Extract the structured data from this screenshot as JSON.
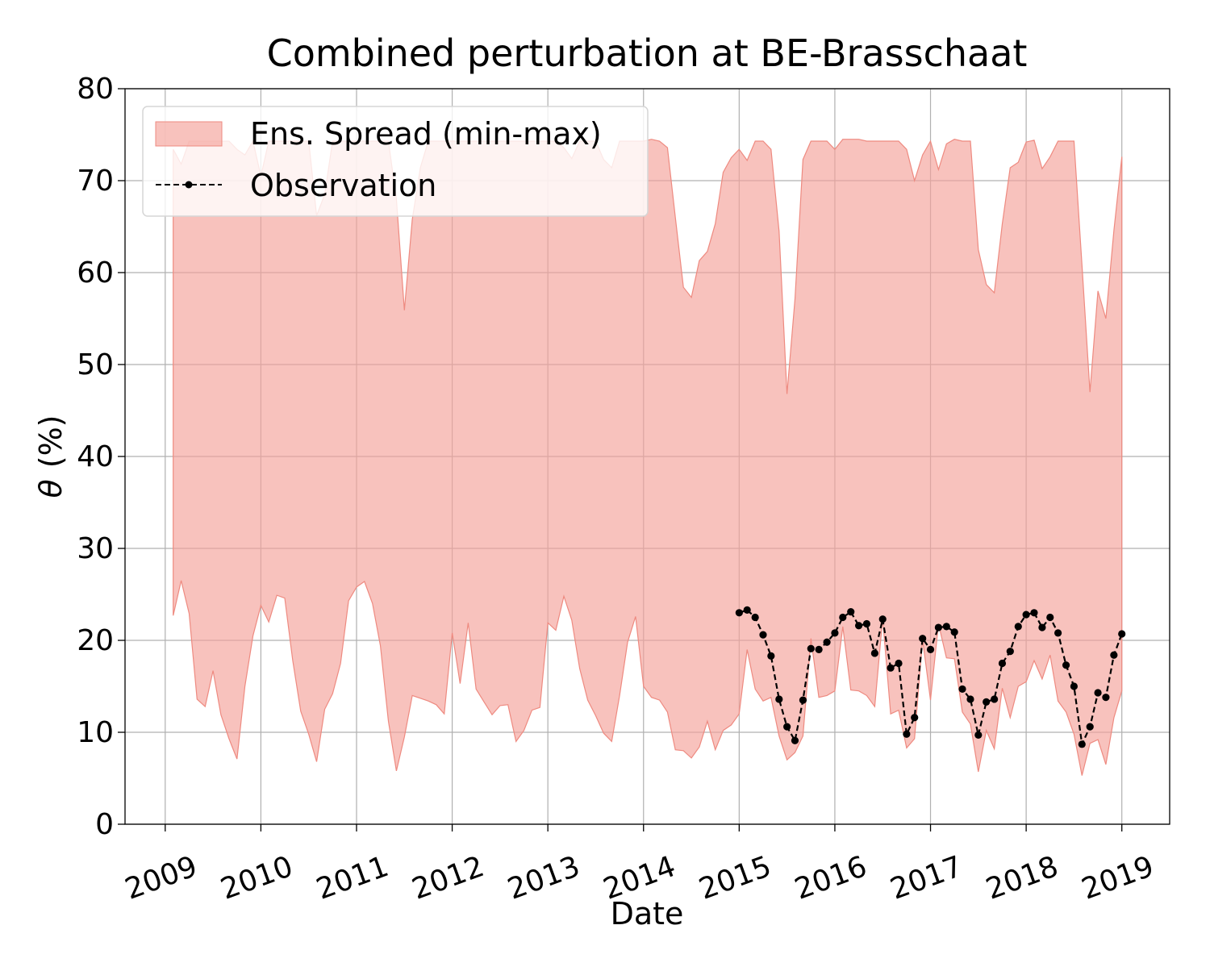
{
  "chart_data": {
    "type": "area",
    "title": "Combined perturbation at BE-Brasschaat",
    "xlabel": "Date",
    "ylabel_symbol": "θ",
    "ylabel_unit": "(%)",
    "ylim": [
      0,
      80
    ],
    "yticks": [
      0,
      10,
      20,
      30,
      40,
      50,
      60,
      70,
      80
    ],
    "xlim": [
      2008.58,
      2019.5
    ],
    "xticks": [
      2009,
      2010,
      2011,
      2012,
      2013,
      2014,
      2015,
      2016,
      2017,
      2018,
      2019
    ],
    "xtick_labels": [
      "2009",
      "2010",
      "2011",
      "2012",
      "2013",
      "2014",
      "2015",
      "2016",
      "2017",
      "2018",
      "2019"
    ],
    "grid": true,
    "legend_position": "upper-left",
    "colors": {
      "spread_fill": "#f4a29a",
      "spread_edge": "#ee8a80",
      "observation": "#000000",
      "grid": "#b0b0b0"
    },
    "series": [
      {
        "name": "Ens. Spread (min-max)",
        "kind": "band",
        "x": [
          2009.083,
          2009.167,
          2009.25,
          2009.333,
          2009.417,
          2009.5,
          2009.583,
          2009.667,
          2009.75,
          2009.833,
          2009.917,
          2010.0,
          2010.083,
          2010.167,
          2010.25,
          2010.333,
          2010.417,
          2010.5,
          2010.583,
          2010.667,
          2010.75,
          2010.833,
          2010.917,
          2011.0,
          2011.083,
          2011.167,
          2011.25,
          2011.333,
          2011.417,
          2011.5,
          2011.583,
          2011.667,
          2011.75,
          2011.833,
          2011.917,
          2012.0,
          2012.083,
          2012.167,
          2012.25,
          2012.333,
          2012.417,
          2012.5,
          2012.583,
          2012.667,
          2012.75,
          2012.833,
          2012.917,
          2013.0,
          2013.083,
          2013.167,
          2013.25,
          2013.333,
          2013.417,
          2013.5,
          2013.583,
          2013.667,
          2013.75,
          2013.833,
          2013.917,
          2014.0,
          2014.083,
          2014.167,
          2014.25,
          2014.333,
          2014.417,
          2014.5,
          2014.583,
          2014.667,
          2014.75,
          2014.833,
          2014.917,
          2015.0,
          2015.083,
          2015.167,
          2015.25,
          2015.333,
          2015.417,
          2015.5,
          2015.583,
          2015.667,
          2015.75,
          2015.833,
          2015.917,
          2016.0,
          2016.083,
          2016.167,
          2016.25,
          2016.333,
          2016.417,
          2016.5,
          2016.583,
          2016.667,
          2016.75,
          2016.833,
          2016.917,
          2017.0,
          2017.083,
          2017.167,
          2017.25,
          2017.333,
          2017.417,
          2017.5,
          2017.583,
          2017.667,
          2017.75,
          2017.833,
          2017.917,
          2018.0,
          2018.083,
          2018.167,
          2018.25,
          2018.333,
          2018.417,
          2018.5,
          2018.583,
          2018.667,
          2018.75,
          2018.833,
          2018.917,
          2019.0
        ],
        "upper": [
          73.4,
          71.8,
          74.3,
          74.3,
          74.3,
          74.3,
          74.3,
          74.3,
          73.4,
          72.8,
          74.3,
          70.5,
          74.3,
          74.3,
          74.3,
          74.3,
          74.3,
          74.3,
          66.2,
          68.5,
          74.3,
          74.3,
          74.3,
          74.3,
          74.3,
          74.3,
          74.3,
          74.3,
          68.0,
          55.9,
          65.8,
          71.4,
          74.3,
          74.3,
          74.3,
          74.3,
          74.3,
          74.3,
          74.3,
          74.3,
          74.3,
          74.3,
          74.3,
          74.3,
          74.3,
          74.3,
          74.3,
          74.3,
          74.3,
          73.6,
          72.4,
          74.3,
          74.3,
          74.3,
          72.3,
          71.4,
          74.3,
          74.3,
          74.3,
          74.3,
          74.5,
          74.3,
          73.6,
          66.0,
          58.4,
          57.3,
          61.3,
          62.3,
          65.3,
          70.9,
          72.5,
          73.4,
          72.2,
          74.3,
          74.3,
          73.4,
          64.5,
          46.8,
          57.1,
          72.3,
          74.3,
          74.3,
          74.3,
          73.4,
          74.5,
          74.5,
          74.5,
          74.3,
          74.3,
          74.3,
          74.3,
          74.3,
          73.4,
          70.0,
          72.8,
          74.3,
          71.2,
          74.0,
          74.5,
          74.3,
          74.3,
          62.5,
          58.7,
          57.8,
          65.3,
          71.4,
          72.0,
          74.2,
          74.4,
          71.3,
          72.6,
          74.3,
          74.3,
          74.3,
          60.8,
          47.0,
          58.0,
          55.0,
          64.6,
          72.6
        ],
        "lower": [
          22.7,
          26.5,
          22.9,
          13.6,
          12.8,
          16.7,
          11.9,
          9.3,
          7.1,
          15.0,
          20.5,
          23.8,
          22.0,
          24.9,
          24.6,
          17.8,
          12.3,
          9.8,
          6.8,
          12.5,
          14.2,
          17.5,
          24.3,
          25.8,
          26.4,
          24.0,
          19.4,
          11.2,
          5.8,
          9.5,
          14.0,
          13.7,
          13.4,
          13.0,
          12.0,
          20.8,
          15.3,
          21.9,
          14.7,
          13.3,
          11.9,
          12.9,
          13.0,
          9.0,
          10.2,
          12.4,
          12.7,
          21.9,
          21.1,
          24.8,
          22.2,
          16.9,
          13.5,
          11.8,
          9.9,
          9.0,
          14.0,
          19.8,
          22.6,
          15.0,
          13.8,
          13.5,
          12.2,
          8.1,
          8.0,
          7.2,
          8.4,
          11.2,
          8.1,
          10.2,
          10.8,
          12.0,
          19.0,
          14.7,
          13.4,
          13.8,
          9.6,
          7.0,
          7.8,
          9.6,
          20.2,
          13.8,
          14.0,
          14.5,
          21.5,
          14.6,
          14.5,
          14.0,
          12.8,
          22.4,
          12.0,
          12.4,
          8.3,
          9.3,
          20.1,
          13.5,
          21.8,
          18.1,
          18.0,
          12.2,
          10.9,
          5.7,
          10.2,
          8.2,
          14.8,
          11.6,
          15.0,
          15.5,
          17.8,
          15.8,
          18.4,
          13.4,
          12.2,
          9.8,
          5.3,
          8.8,
          9.2,
          6.5,
          11.6,
          14.5
        ]
      },
      {
        "name": "Observation",
        "kind": "line-markers",
        "x": [
          2015.0,
          2015.083,
          2015.167,
          2015.25,
          2015.333,
          2015.417,
          2015.5,
          2015.583,
          2015.667,
          2015.75,
          2015.833,
          2015.917,
          2016.0,
          2016.083,
          2016.167,
          2016.25,
          2016.333,
          2016.417,
          2016.5,
          2016.583,
          2016.667,
          2016.75,
          2016.833,
          2016.917,
          2017.0,
          2017.083,
          2017.167,
          2017.25,
          2017.333,
          2017.417,
          2017.5,
          2017.583,
          2017.667,
          2017.75,
          2017.833,
          2017.917,
          2018.0,
          2018.083,
          2018.167,
          2018.25,
          2018.333,
          2018.417,
          2018.5,
          2018.583,
          2018.667,
          2018.75,
          2018.833,
          2018.917,
          2019.0
        ],
        "y": [
          23.0,
          23.3,
          22.5,
          20.6,
          18.3,
          13.6,
          10.6,
          9.1,
          13.5,
          19.1,
          19.0,
          19.8,
          20.8,
          22.5,
          23.1,
          21.6,
          21.8,
          18.6,
          22.3,
          17.0,
          17.5,
          9.8,
          11.6,
          20.2,
          19.0,
          21.4,
          21.5,
          20.9,
          14.7,
          13.6,
          9.7,
          13.3,
          13.6,
          17.5,
          18.8,
          21.5,
          22.8,
          23.0,
          21.4,
          22.5,
          20.8,
          17.3,
          15.0,
          8.7,
          10.6,
          14.3,
          13.8,
          18.4,
          20.7
        ]
      }
    ]
  }
}
